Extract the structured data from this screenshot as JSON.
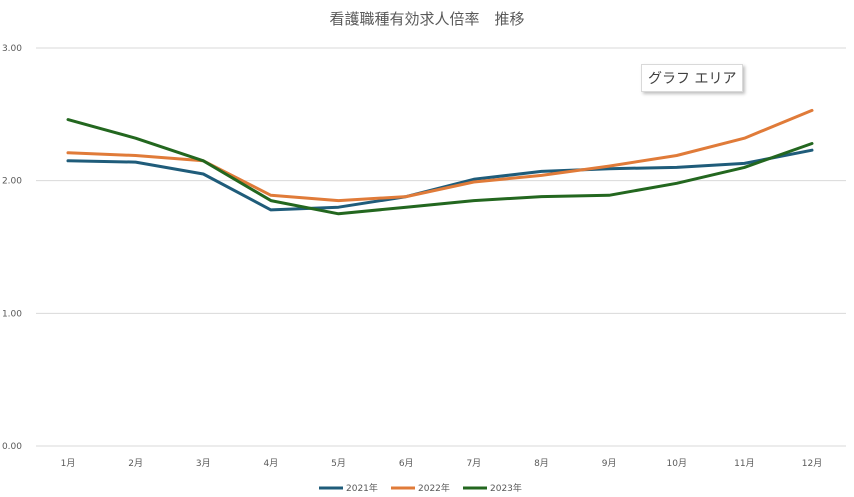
{
  "chart_data": {
    "type": "line",
    "title": "看護職種有効求人倍率　推移",
    "xlabel": "",
    "ylabel": "",
    "categories": [
      "1月",
      "2月",
      "3月",
      "4月",
      "5月",
      "6月",
      "7月",
      "8月",
      "9月",
      "10月",
      "11月",
      "12月"
    ],
    "ylim": [
      0,
      3
    ],
    "yticks": [
      "0.00",
      "1.00",
      "2.00",
      "3.00"
    ],
    "grid": true,
    "legend": "bottom",
    "series": [
      {
        "name": "2021年",
        "color": "#1f5c7a",
        "values": [
          2.15,
          2.14,
          2.05,
          1.78,
          1.8,
          1.88,
          2.01,
          2.07,
          2.09,
          2.1,
          2.13,
          2.23
        ]
      },
      {
        "name": "2022年",
        "color": "#e07b39",
        "values": [
          2.21,
          2.19,
          2.15,
          1.89,
          1.85,
          1.88,
          1.99,
          2.04,
          2.11,
          2.19,
          2.32,
          2.53
        ]
      },
      {
        "name": "2023年",
        "color": "#23671f",
        "values": [
          2.46,
          2.32,
          2.15,
          1.85,
          1.75,
          1.8,
          1.85,
          1.88,
          1.89,
          1.98,
          2.1,
          2.28
        ]
      }
    ]
  },
  "tooltip": {
    "text": "グラフ エリア"
  }
}
